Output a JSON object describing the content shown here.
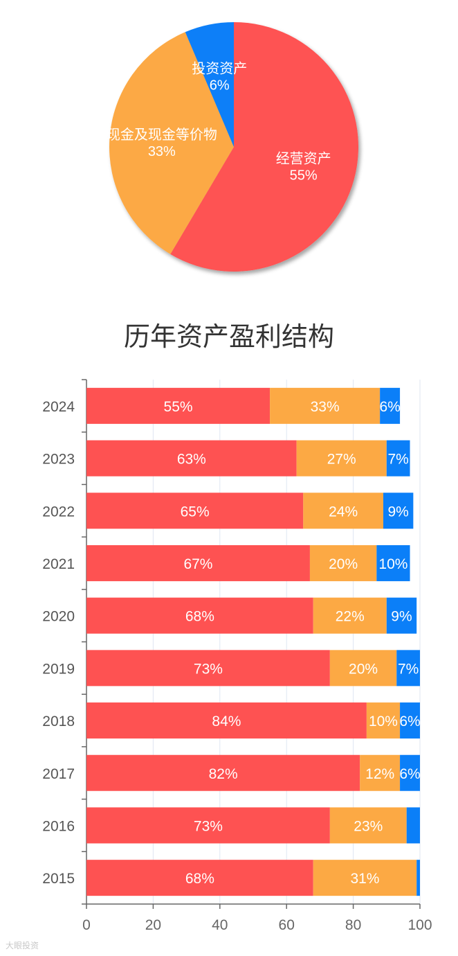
{
  "colors": {
    "red": "#FE5252",
    "orange": "#FCA944",
    "blue": "#0B7FF8",
    "axis": "#666666",
    "grid": "#dfe6f2"
  },
  "chart_data": [
    {
      "type": "pie",
      "title": "",
      "slices": [
        {
          "label": "经营资产",
          "percent": "55%",
          "value": 55,
          "color": "#FE5252"
        },
        {
          "label": "现金及现金等价物",
          "percent": "33%",
          "value": 33,
          "color": "#FCA944"
        },
        {
          "label": "投资资产",
          "percent": "6%",
          "value": 6,
          "color": "#0B7FF8"
        }
      ]
    },
    {
      "type": "bar",
      "orientation": "horizontal",
      "stacked": true,
      "title": "历年资产盈利结构",
      "categories": [
        "2024",
        "2023",
        "2022",
        "2021",
        "2020",
        "2019",
        "2018",
        "2017",
        "2016",
        "2015"
      ],
      "series": [
        {
          "color": "#FE5252",
          "values": [
            55,
            63,
            65,
            67,
            68,
            73,
            84,
            82,
            73,
            68
          ],
          "labels": [
            "55%",
            "63%",
            "65%",
            "67%",
            "68%",
            "73%",
            "84%",
            "82%",
            "73%",
            "68%"
          ]
        },
        {
          "color": "#FCA944",
          "values": [
            33,
            27,
            24,
            20,
            22,
            20,
            10,
            12,
            23,
            31
          ],
          "labels": [
            "33%",
            "27%",
            "24%",
            "20%",
            "22%",
            "20%",
            "10%",
            "12%",
            "23%",
            "31%"
          ]
        },
        {
          "color": "#0B7FF8",
          "values": [
            6,
            7,
            9,
            10,
            9,
            7,
            6,
            6,
            4,
            1
          ],
          "labels": [
            "6%",
            "7%",
            "9%",
            "10%",
            "9%",
            "7%",
            "6%",
            "6%",
            "",
            ""
          ]
        }
      ],
      "xlim": [
        0,
        100
      ],
      "xticks": [
        "0",
        "20",
        "40",
        "60",
        "80",
        "100"
      ],
      "grid": true
    }
  ],
  "watermark": "大眼投资"
}
